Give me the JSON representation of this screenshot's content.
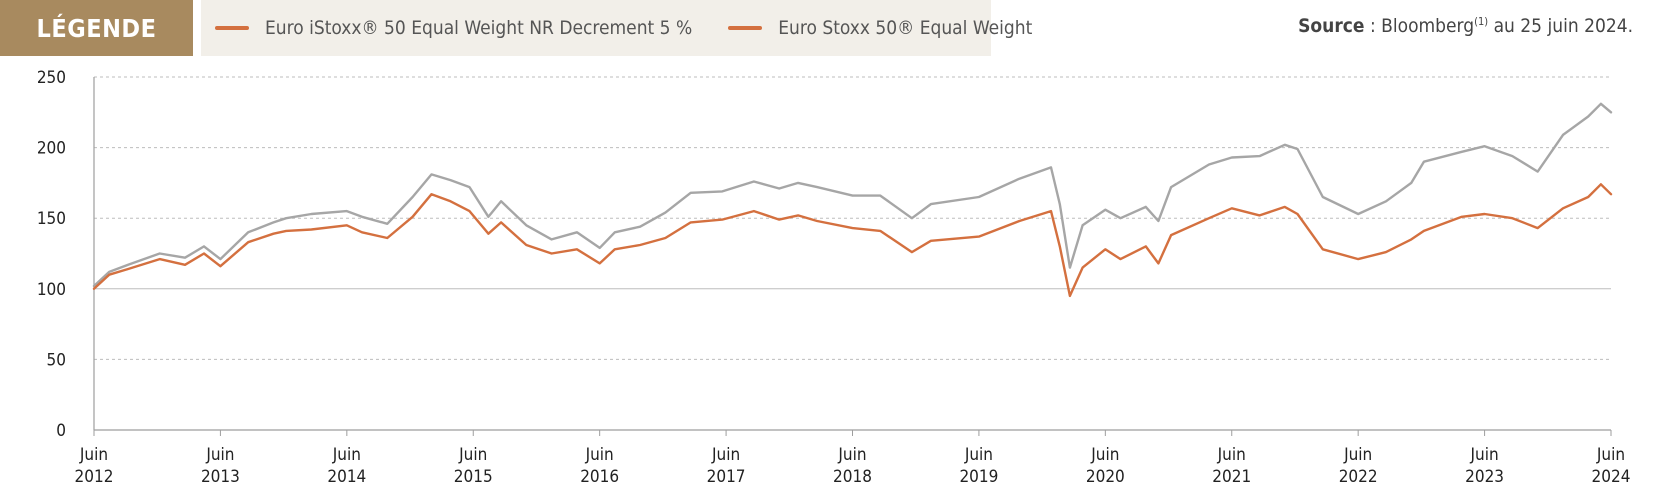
{
  "legend": {
    "title": "LÉGENDE",
    "items": [
      {
        "label": "Euro iStoxx® 50 Equal Weight NR Decrement 5 %",
        "color": "#d4703f"
      },
      {
        "label": "Euro Stoxx 50® Equal Weight",
        "color": "#d4703f"
      }
    ]
  },
  "source": {
    "prefix": "Source",
    "separator": " : ",
    "name": "Bloomberg",
    "note": "(1)",
    "suffix": " au 25 juin 2024."
  },
  "chart_data": {
    "type": "line",
    "title": "",
    "xlabel": "",
    "ylabel": "",
    "ylim": [
      0,
      250
    ],
    "yticks": [
      0,
      50,
      100,
      150,
      200,
      250
    ],
    "xlim": [
      2012.48,
      2024.48
    ],
    "xticks": [
      {
        "x": 2012.48,
        "line1": "Juin",
        "line2": "2012"
      },
      {
        "x": 2013.48,
        "line1": "Juin",
        "line2": "2013"
      },
      {
        "x": 2014.48,
        "line1": "Juin",
        "line2": "2014"
      },
      {
        "x": 2015.48,
        "line1": "Juin",
        "line2": "2015"
      },
      {
        "x": 2016.48,
        "line1": "Juin",
        "line2": "2016"
      },
      {
        "x": 2017.48,
        "line1": "Juin",
        "line2": "2017"
      },
      {
        "x": 2018.48,
        "line1": "Juin",
        "line2": "2018"
      },
      {
        "x": 2019.48,
        "line1": "Juin",
        "line2": "2019"
      },
      {
        "x": 2020.48,
        "line1": "Juin",
        "line2": "2020"
      },
      {
        "x": 2021.48,
        "line1": "Juin",
        "line2": "2021"
      },
      {
        "x": 2022.48,
        "line1": "Juin",
        "line2": "2022"
      },
      {
        "x": 2023.48,
        "line1": "Juin",
        "line2": "2023"
      },
      {
        "x": 2024.48,
        "line1": "Juin",
        "line2": "2024"
      }
    ],
    "grid": "horizontal-dashed",
    "baseline": 100,
    "series": [
      {
        "color": "#a6a6a6",
        "x": [
          2012.48,
          2012.6,
          2012.75,
          2013.0,
          2013.2,
          2013.35,
          2013.48,
          2013.7,
          2013.9,
          2014.0,
          2014.2,
          2014.48,
          2014.6,
          2014.8,
          2015.0,
          2015.15,
          2015.3,
          2015.45,
          2015.6,
          2015.7,
          2015.9,
          2016.1,
          2016.3,
          2016.48,
          2016.6,
          2016.8,
          2017.0,
          2017.2,
          2017.45,
          2017.7,
          2017.9,
          2018.05,
          2018.2,
          2018.48,
          2018.7,
          2018.95,
          2019.1,
          2019.48,
          2019.8,
          2020.05,
          2020.12,
          2020.2,
          2020.3,
          2020.48,
          2020.6,
          2020.8,
          2020.9,
          2021.0,
          2021.3,
          2021.48,
          2021.7,
          2021.9,
          2022.0,
          2022.2,
          2022.48,
          2022.7,
          2022.9,
          2023.0,
          2023.3,
          2023.48,
          2023.7,
          2023.9,
          2024.1,
          2024.3,
          2024.4,
          2024.48
        ],
        "values": [
          102,
          112,
          117,
          125,
          122,
          130,
          121,
          140,
          147,
          150,
          153,
          155,
          151,
          146,
          165,
          181,
          177,
          172,
          151,
          162,
          145,
          135,
          140,
          129,
          140,
          144,
          154,
          168,
          169,
          176,
          171,
          175,
          172,
          166,
          166,
          150,
          160,
          165,
          178,
          186,
          160,
          115,
          145,
          156,
          150,
          158,
          148,
          172,
          188,
          193,
          194,
          202,
          199,
          165,
          153,
          162,
          175,
          190,
          197,
          201,
          194,
          183,
          209,
          222,
          231,
          225
        ]
      },
      {
        "color": "#d4703f",
        "x": [
          2012.48,
          2012.6,
          2012.75,
          2013.0,
          2013.2,
          2013.35,
          2013.48,
          2013.7,
          2013.9,
          2014.0,
          2014.2,
          2014.48,
          2014.6,
          2014.8,
          2015.0,
          2015.15,
          2015.3,
          2015.45,
          2015.6,
          2015.7,
          2015.9,
          2016.1,
          2016.3,
          2016.48,
          2016.6,
          2016.8,
          2017.0,
          2017.2,
          2017.45,
          2017.7,
          2017.9,
          2018.05,
          2018.2,
          2018.48,
          2018.7,
          2018.95,
          2019.1,
          2019.48,
          2019.8,
          2020.05,
          2020.12,
          2020.2,
          2020.3,
          2020.48,
          2020.6,
          2020.8,
          2020.9,
          2021.0,
          2021.3,
          2021.48,
          2021.7,
          2021.9,
          2022.0,
          2022.2,
          2022.48,
          2022.7,
          2022.9,
          2023.0,
          2023.3,
          2023.48,
          2023.7,
          2023.9,
          2024.1,
          2024.3,
          2024.4,
          2024.48
        ],
        "values": [
          100,
          110,
          114,
          121,
          117,
          125,
          116,
          133,
          139,
          141,
          142,
          145,
          140,
          136,
          151,
          167,
          162,
          155,
          139,
          147,
          131,
          125,
          128,
          118,
          128,
          131,
          136,
          147,
          149,
          155,
          149,
          152,
          148,
          143,
          141,
          126,
          134,
          137,
          148,
          155,
          130,
          95,
          115,
          128,
          121,
          130,
          118,
          138,
          150,
          157,
          152,
          158,
          153,
          128,
          121,
          126,
          135,
          141,
          151,
          153,
          150,
          143,
          157,
          165,
          174,
          167
        ]
      }
    ]
  }
}
